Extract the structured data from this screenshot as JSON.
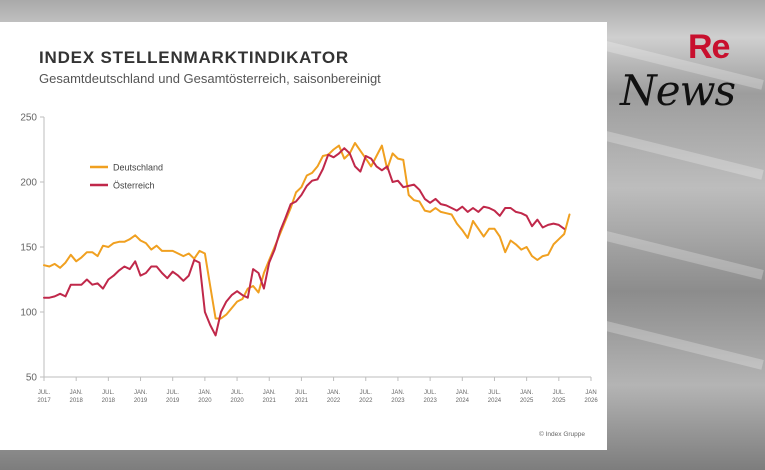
{
  "branding": {
    "logo_re": "Re",
    "logo_news": "News"
  },
  "chart_data": {
    "type": "line",
    "title": "INDEX STELLENMARKTINDIKATOR",
    "subtitle": "Gesamtdeutschland und Gesamtösterreich, saisonbereinigt",
    "source_note": "© Index Gruppe",
    "ylim": [
      50,
      250
    ],
    "yticks": [
      50,
      100,
      150,
      200,
      250
    ],
    "xlim": [
      0,
      102
    ],
    "xticks": [
      {
        "x": 0,
        "line1": "JUL.",
        "line2": "2017"
      },
      {
        "x": 6,
        "line1": "JAN.",
        "line2": "2018"
      },
      {
        "x": 12,
        "line1": "JUL.",
        "line2": "2018"
      },
      {
        "x": 18,
        "line1": "JAN.",
        "line2": "2019"
      },
      {
        "x": 24,
        "line1": "JUL.",
        "line2": "2019"
      },
      {
        "x": 30,
        "line1": "JAN.",
        "line2": "2020"
      },
      {
        "x": 36,
        "line1": "JUL.",
        "line2": "2020"
      },
      {
        "x": 42,
        "line1": "JAN.",
        "line2": "2021"
      },
      {
        "x": 48,
        "line1": "JUL.",
        "line2": "2021"
      },
      {
        "x": 54,
        "line1": "JAN.",
        "line2": "2022"
      },
      {
        "x": 60,
        "line1": "JUL.",
        "line2": "2022"
      },
      {
        "x": 66,
        "line1": "JAN.",
        "line2": "2023"
      },
      {
        "x": 72,
        "line1": "JUL.",
        "line2": "2023"
      },
      {
        "x": 78,
        "line1": "JAN.",
        "line2": "2024"
      },
      {
        "x": 84,
        "line1": "JUL.",
        "line2": "2024"
      },
      {
        "x": 90,
        "line1": "JAN.",
        "line2": "2025"
      },
      {
        "x": 96,
        "line1": "JUL.",
        "line2": "2025"
      },
      {
        "x": 102,
        "line1": "JAN",
        "line2": "2026"
      }
    ],
    "legend_position": "top-left",
    "series": [
      {
        "name": "Deutschland",
        "color": "#f0a020",
        "points": [
          [
            0,
            136
          ],
          [
            1,
            135
          ],
          [
            2,
            137
          ],
          [
            3,
            134
          ],
          [
            4,
            138
          ],
          [
            5,
            144
          ],
          [
            6,
            139
          ],
          [
            7,
            142
          ],
          [
            8,
            146
          ],
          [
            9,
            146
          ],
          [
            10,
            143
          ],
          [
            11,
            151
          ],
          [
            12,
            150
          ],
          [
            13,
            153
          ],
          [
            14,
            154
          ],
          [
            15,
            154
          ],
          [
            16,
            156
          ],
          [
            17,
            159
          ],
          [
            18,
            155
          ],
          [
            19,
            153
          ],
          [
            20,
            148
          ],
          [
            21,
            151
          ],
          [
            22,
            147
          ],
          [
            23,
            147
          ],
          [
            24,
            147
          ],
          [
            25,
            145
          ],
          [
            26,
            143
          ],
          [
            27,
            145
          ],
          [
            28,
            141
          ],
          [
            29,
            147
          ],
          [
            30,
            145
          ],
          [
            31,
            120
          ],
          [
            32,
            95
          ],
          [
            33,
            95
          ],
          [
            34,
            98
          ],
          [
            35,
            103
          ],
          [
            36,
            108
          ],
          [
            37,
            110
          ],
          [
            38,
            118
          ],
          [
            39,
            120
          ],
          [
            40,
            115
          ],
          [
            41,
            130
          ],
          [
            42,
            140
          ],
          [
            43,
            150
          ],
          [
            44,
            160
          ],
          [
            45,
            170
          ],
          [
            46,
            180
          ],
          [
            47,
            192
          ],
          [
            48,
            196
          ],
          [
            49,
            205
          ],
          [
            50,
            207
          ],
          [
            51,
            212
          ],
          [
            52,
            220
          ],
          [
            53,
            221
          ],
          [
            54,
            225
          ],
          [
            55,
            228
          ],
          [
            56,
            218
          ],
          [
            57,
            222
          ],
          [
            58,
            230
          ],
          [
            59,
            224
          ],
          [
            60,
            218
          ],
          [
            61,
            212
          ],
          [
            62,
            220
          ],
          [
            63,
            228
          ],
          [
            64,
            210
          ],
          [
            65,
            222
          ],
          [
            66,
            218
          ],
          [
            67,
            217
          ],
          [
            68,
            190
          ],
          [
            69,
            186
          ],
          [
            70,
            185
          ],
          [
            71,
            178
          ],
          [
            72,
            177
          ],
          [
            73,
            180
          ],
          [
            74,
            177
          ],
          [
            75,
            176
          ],
          [
            76,
            175
          ],
          [
            77,
            168
          ],
          [
            78,
            163
          ],
          [
            79,
            157
          ],
          [
            80,
            170
          ],
          [
            81,
            164
          ],
          [
            82,
            158
          ],
          [
            83,
            164
          ],
          [
            84,
            164
          ],
          [
            85,
            158
          ],
          [
            86,
            146
          ],
          [
            87,
            155
          ],
          [
            88,
            152
          ],
          [
            89,
            148
          ],
          [
            90,
            150
          ],
          [
            91,
            143
          ],
          [
            92,
            140
          ],
          [
            93,
            143
          ],
          [
            94,
            144
          ],
          [
            95,
            152
          ],
          [
            96,
            156
          ],
          [
            97,
            160
          ],
          [
            98,
            175
          ]
        ]
      },
      {
        "name": "Österreich",
        "color": "#c0284a",
        "points": [
          [
            0,
            111
          ],
          [
            1,
            111
          ],
          [
            2,
            112
          ],
          [
            3,
            114
          ],
          [
            4,
            112
          ],
          [
            5,
            121
          ],
          [
            6,
            121
          ],
          [
            7,
            121
          ],
          [
            8,
            125
          ],
          [
            9,
            121
          ],
          [
            10,
            122
          ],
          [
            11,
            118
          ],
          [
            12,
            125
          ],
          [
            13,
            128
          ],
          [
            14,
            132
          ],
          [
            15,
            135
          ],
          [
            16,
            133
          ],
          [
            17,
            139
          ],
          [
            18,
            128
          ],
          [
            19,
            130
          ],
          [
            20,
            135
          ],
          [
            21,
            135
          ],
          [
            22,
            130
          ],
          [
            23,
            126
          ],
          [
            24,
            131
          ],
          [
            25,
            128
          ],
          [
            26,
            124
          ],
          [
            27,
            128
          ],
          [
            28,
            140
          ],
          [
            29,
            138
          ],
          [
            30,
            100
          ],
          [
            31,
            90
          ],
          [
            32,
            82
          ],
          [
            33,
            100
          ],
          [
            34,
            108
          ],
          [
            35,
            113
          ],
          [
            36,
            116
          ],
          [
            37,
            113
          ],
          [
            38,
            111
          ],
          [
            39,
            133
          ],
          [
            40,
            130
          ],
          [
            41,
            118
          ],
          [
            42,
            138
          ],
          [
            43,
            148
          ],
          [
            44,
            162
          ],
          [
            45,
            172
          ],
          [
            46,
            183
          ],
          [
            47,
            185
          ],
          [
            48,
            190
          ],
          [
            49,
            197
          ],
          [
            50,
            201
          ],
          [
            51,
            202
          ],
          [
            52,
            210
          ],
          [
            53,
            221
          ],
          [
            54,
            219
          ],
          [
            55,
            222
          ],
          [
            56,
            226
          ],
          [
            57,
            222
          ],
          [
            58,
            212
          ],
          [
            59,
            208
          ],
          [
            60,
            220
          ],
          [
            61,
            218
          ],
          [
            62,
            212
          ],
          [
            63,
            209
          ],
          [
            64,
            212
          ],
          [
            65,
            200
          ],
          [
            66,
            201
          ],
          [
            67,
            196
          ],
          [
            68,
            197
          ],
          [
            69,
            198
          ],
          [
            70,
            194
          ],
          [
            71,
            187
          ],
          [
            72,
            184
          ],
          [
            73,
            187
          ],
          [
            74,
            183
          ],
          [
            75,
            182
          ],
          [
            76,
            180
          ],
          [
            77,
            178
          ],
          [
            78,
            181
          ],
          [
            79,
            177
          ],
          [
            80,
            180
          ],
          [
            81,
            177
          ],
          [
            82,
            181
          ],
          [
            83,
            180
          ],
          [
            84,
            178
          ],
          [
            85,
            174
          ],
          [
            86,
            180
          ],
          [
            87,
            180
          ],
          [
            88,
            177
          ],
          [
            89,
            176
          ],
          [
            90,
            174
          ],
          [
            91,
            166
          ],
          [
            92,
            171
          ],
          [
            93,
            165
          ],
          [
            94,
            167
          ],
          [
            95,
            168
          ],
          [
            96,
            167
          ],
          [
            97,
            164
          ]
        ]
      }
    ]
  }
}
